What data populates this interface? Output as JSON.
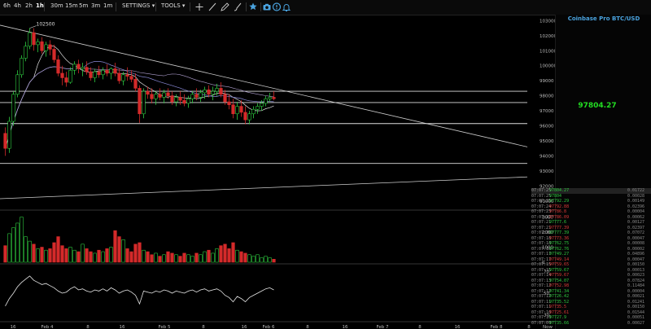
{
  "toolbar": {
    "intervals": [
      "6h",
      "4h",
      "2h",
      "1h",
      "30m",
      "15m",
      "5m",
      "3m",
      "1m"
    ],
    "active_interval": "1h",
    "settings_label": "SETTINGS",
    "tools_label": "TOOLS",
    "tool_icons": [
      "crosshair-icon",
      "line-icon",
      "pencil-icon",
      "brush-icon",
      "star-icon",
      "camera-icon",
      "alert-icon",
      "bell-icon"
    ]
  },
  "panel": {
    "title": "Coinbase Pro BTC/USD",
    "last_price": "97804.27",
    "trades": [
      {
        "time": "07:07:25",
        "price": "97804.27",
        "size": "0.01722",
        "side": "up"
      },
      {
        "time": "07:07:25",
        "price": "97804",
        "size": "0.00028",
        "side": "up"
      },
      {
        "time": "07:07:25",
        "price": "97792.29",
        "size": "0.00149",
        "side": "up"
      },
      {
        "time": "07:07:24",
        "price": "97792.88",
        "size": "0.02396",
        "side": "dn"
      },
      {
        "time": "07:07:23",
        "price": "97786.8",
        "size": "0.00004",
        "side": "dn"
      },
      {
        "time": "07:07:22",
        "price": "97786.09",
        "size": "0.00062",
        "side": "dn"
      },
      {
        "time": "07:07:21",
        "price": "97777.6",
        "size": "0.00127",
        "side": "up"
      },
      {
        "time": "07:07:21",
        "price": "97777.39",
        "size": "0.02397",
        "side": "dn"
      },
      {
        "time": "07:07:20",
        "price": "97777.39",
        "size": "0.07072",
        "side": "up"
      },
      {
        "time": "07:07:18",
        "price": "97773.36",
        "size": "0.00047",
        "side": "dn"
      },
      {
        "time": "07:07:18",
        "price": "97762.75",
        "size": "0.00008",
        "side": "up"
      },
      {
        "time": "07:07:18",
        "price": "97762.76",
        "size": "0.00002",
        "side": "up"
      },
      {
        "time": "07:07:17",
        "price": "97749.27",
        "size": "0.04896",
        "side": "up"
      },
      {
        "time": "07:07:17",
        "price": "97749.14",
        "size": "0.00047",
        "side": "dn"
      },
      {
        "time": "07:07:15",
        "price": "97759.65",
        "size": "0.00150",
        "side": "dn"
      },
      {
        "time": "07:07:15",
        "price": "97759.67",
        "size": "0.00013",
        "side": "up"
      },
      {
        "time": "07:07:14",
        "price": "97759.67",
        "size": "0.00023",
        "side": "dn"
      },
      {
        "time": "07:07:13",
        "price": "97754.07",
        "size": "0.07824",
        "side": "up"
      },
      {
        "time": "07:07:12",
        "price": "97752.98",
        "size": "0.11484",
        "side": "dn"
      },
      {
        "time": "07:07:12",
        "price": "97741.34",
        "size": "0.00004",
        "side": "up"
      },
      {
        "time": "07:07:12",
        "price": "97726.42",
        "size": "0.00021",
        "side": "up"
      },
      {
        "time": "07:07:11",
        "price": "97735.52",
        "size": "0.01241",
        "side": "up"
      },
      {
        "time": "07:07:11",
        "price": "97735.5",
        "size": "0.00150",
        "side": "dn"
      },
      {
        "time": "07:07:10",
        "price": "97725.61",
        "size": "0.01544",
        "side": "dn"
      },
      {
        "time": "07:07:10",
        "price": "97727.9",
        "size": "0.00051",
        "side": "up"
      },
      {
        "time": "07:07:09",
        "price": "97735.66",
        "size": "0.00027",
        "side": "up"
      }
    ]
  },
  "chart_data": {
    "type": "candlestick",
    "price_axis": {
      "ticks": [
        "103000",
        "102000",
        "101000",
        "100000",
        "99000",
        "98000",
        "97000",
        "96000",
        "95000",
        "94000",
        "93000",
        "92000",
        "91000"
      ],
      "range": [
        90500,
        103400
      ]
    },
    "time_axis": {
      "ticks": [
        "16",
        "Feb 4",
        "8",
        "16",
        "Feb 5",
        "8",
        "16",
        "Feb 6",
        "8",
        "16",
        "Feb 7",
        "8",
        "16",
        "Feb 8",
        "8",
        "Now"
      ]
    },
    "high_annotation": "102500",
    "volume_axis": {
      "ticks": [
        "3000",
        "2000",
        "1000",
        "0"
      ],
      "range": [
        0,
        3300
      ]
    },
    "rsi_axis": {
      "ticks": [
        "70",
        "50",
        "30"
      ],
      "range": [
        25,
        75
      ]
    },
    "horizontal_levels": [
      98300,
      97550,
      96150,
      93500
    ],
    "trendlines": [
      {
        "from": {
          "x": "Feb 3 18:00",
          "y": 102800
        },
        "to": {
          "x": "Feb 8 18:00",
          "y": 94600
        }
      },
      {
        "from": {
          "x": "Feb 3 18:00",
          "y": 91100
        },
        "to": {
          "x": "Feb 8 18:00",
          "y": 92600
        }
      }
    ],
    "candles_ohlc": [
      [
        95500,
        95900,
        94000,
        94500
      ],
      [
        94500,
        96600,
        94200,
        96300
      ],
      [
        96300,
        98300,
        96000,
        98100
      ],
      [
        98100,
        99700,
        97900,
        99400
      ],
      [
        99400,
        100700,
        99200,
        100500
      ],
      [
        100500,
        101600,
        100300,
        101300
      ],
      [
        101300,
        102500,
        101100,
        102200
      ],
      [
        102200,
        102500,
        101000,
        101400
      ],
      [
        101400,
        101800,
        100900,
        101600
      ],
      [
        101600,
        101900,
        100800,
        101000
      ],
      [
        101000,
        101600,
        100600,
        101400
      ],
      [
        101400,
        101700,
        100700,
        101100
      ],
      [
        101100,
        101400,
        100200,
        100400
      ],
      [
        100400,
        100700,
        99300,
        99500
      ],
      [
        99500,
        100000,
        98700,
        99200
      ],
      [
        99200,
        99600,
        98600,
        98900
      ],
      [
        98900,
        99900,
        98800,
        99700
      ],
      [
        99700,
        100300,
        99400,
        100100
      ],
      [
        100100,
        100400,
        99500,
        99800
      ],
      [
        99800,
        100200,
        99300,
        99900
      ],
      [
        99900,
        100300,
        99400,
        99600
      ],
      [
        99600,
        99900,
        99000,
        99200
      ],
      [
        99200,
        99800,
        98900,
        99600
      ],
      [
        99600,
        100000,
        99200,
        99400
      ],
      [
        99400,
        99900,
        99100,
        99700
      ],
      [
        99700,
        100100,
        99300,
        99500
      ],
      [
        99500,
        99900,
        99100,
        99800
      ],
      [
        99800,
        100200,
        99300,
        99500
      ],
      [
        99500,
        99800,
        98800,
        99000
      ],
      [
        99000,
        99600,
        98700,
        99400
      ],
      [
        99400,
        99900,
        99000,
        99300
      ],
      [
        99300,
        99700,
        98900,
        99100
      ],
      [
        99100,
        99500,
        98300,
        98500
      ],
      [
        98500,
        98700,
        96200,
        96800
      ],
      [
        96800,
        98500,
        96500,
        98300
      ],
      [
        98300,
        98600,
        97800,
        98100
      ],
      [
        98100,
        98500,
        97500,
        97800
      ],
      [
        97800,
        98300,
        97400,
        98100
      ],
      [
        98100,
        98500,
        97700,
        97900
      ],
      [
        97900,
        98400,
        97500,
        98200
      ],
      [
        98200,
        98500,
        97800,
        98000
      ],
      [
        98000,
        98300,
        97400,
        97600
      ],
      [
        97600,
        98100,
        97300,
        97900
      ],
      [
        97900,
        98300,
        97400,
        97700
      ],
      [
        97700,
        98100,
        97300,
        97500
      ],
      [
        97500,
        98000,
        97200,
        97800
      ],
      [
        97800,
        98300,
        97500,
        98100
      ],
      [
        98100,
        98500,
        97700,
        97900
      ],
      [
        97900,
        98400,
        97600,
        98200
      ],
      [
        98200,
        98600,
        97800,
        98400
      ],
      [
        98400,
        98700,
        97900,
        98100
      ],
      [
        98100,
        98600,
        97700,
        98300
      ],
      [
        98300,
        98800,
        98000,
        98500
      ],
      [
        98500,
        98900,
        97900,
        98100
      ],
      [
        98100,
        98400,
        97400,
        97600
      ],
      [
        97600,
        98100,
        97100,
        97400
      ],
      [
        97400,
        97800,
        96500,
        96800
      ],
      [
        96800,
        97600,
        96400,
        97300
      ],
      [
        97300,
        97700,
        96600,
        96900
      ],
      [
        96900,
        97300,
        96100,
        96400
      ],
      [
        96400,
        97000,
        96100,
        96800
      ],
      [
        96800,
        97300,
        96500,
        97100
      ],
      [
        97100,
        97500,
        96800,
        97300
      ],
      [
        97300,
        97700,
        97000,
        97500
      ],
      [
        97500,
        98000,
        97300,
        97800
      ],
      [
        97800,
        98200,
        97600,
        97900
      ],
      [
        97900,
        98300,
        97700,
        97804
      ]
    ],
    "volumes": [
      1100,
      1900,
      2300,
      2600,
      3000,
      1700,
      1400,
      1200,
      900,
      1000,
      800,
      900,
      1300,
      1700,
      1100,
      900,
      1000,
      800,
      700,
      1200,
      900,
      700,
      600,
      800,
      700,
      900,
      1000,
      2100,
      1700,
      1500,
      900,
      700,
      1200,
      1300,
      800,
      700,
      500,
      600,
      400,
      500,
      700,
      600,
      500,
      400,
      600,
      500,
      400,
      600,
      500,
      700,
      800,
      600,
      900,
      1100,
      1200,
      900,
      1300,
      800,
      700,
      600,
      500,
      400,
      500,
      300,
      400,
      300,
      200
    ],
    "rsi": [
      38,
      45,
      50,
      56,
      60,
      63,
      66,
      62,
      60,
      58,
      59,
      57,
      55,
      52,
      50,
      51,
      54,
      56,
      53,
      54,
      52,
      51,
      53,
      52,
      54,
      52,
      55,
      53,
      50,
      52,
      53,
      51,
      48,
      40,
      52,
      51,
      50,
      52,
      51,
      53,
      52,
      50,
      52,
      51,
      50,
      52,
      53,
      51,
      53,
      54,
      52,
      53,
      54,
      52,
      48,
      46,
      42,
      47,
      45,
      42,
      46,
      48,
      50,
      52,
      54,
      55,
      53
    ]
  }
}
